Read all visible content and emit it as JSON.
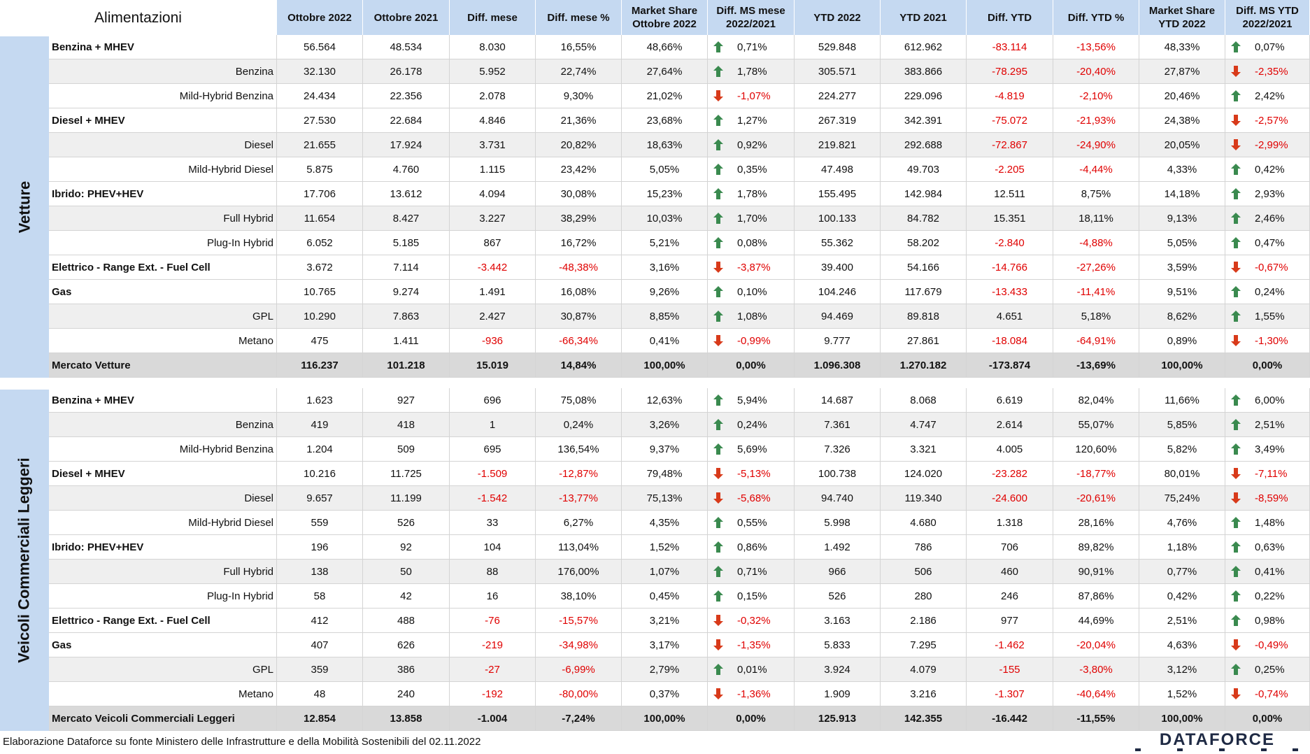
{
  "columns": [
    "Alimentazioni",
    "Ottobre 2022",
    "Ottobre 2021",
    "Diff. mese",
    "Diff. mese %",
    "Market Share\nOttobre 2022",
    "Diff. MS mese\n2022/2021",
    "YTD 2022",
    "YTD 2021",
    "Diff. YTD",
    "Diff. YTD %",
    "Market Share\nYTD 2022",
    "Diff. MS YTD\n2022/2021"
  ],
  "sections": [
    {
      "label": "Vetture",
      "rows": [
        {
          "type": "cat",
          "name": "Benzina + MHEV",
          "v": [
            "56.564",
            "48.534",
            "8.030",
            "16,55%",
            "48,66%",
            "0,71%",
            "529.848",
            "612.962",
            "-83.114",
            "-13,56%",
            "48,33%",
            "0,07%"
          ],
          "a1": "up",
          "a2": "up"
        },
        {
          "type": "sub",
          "name": "Benzina",
          "v": [
            "32.130",
            "26.178",
            "5.952",
            "22,74%",
            "27,64%",
            "1,78%",
            "305.571",
            "383.866",
            "-78.295",
            "-20,40%",
            "27,87%",
            "-2,35%"
          ],
          "a1": "up",
          "a2": "down"
        },
        {
          "type": "sub",
          "name": "Mild-Hybrid Benzina",
          "v": [
            "24.434",
            "22.356",
            "2.078",
            "9,30%",
            "21,02%",
            "-1,07%",
            "224.277",
            "229.096",
            "-4.819",
            "-2,10%",
            "20,46%",
            "2,42%"
          ],
          "a1": "down",
          "a2": "up"
        },
        {
          "type": "cat",
          "name": "Diesel + MHEV",
          "v": [
            "27.530",
            "22.684",
            "4.846",
            "21,36%",
            "23,68%",
            "1,27%",
            "267.319",
            "342.391",
            "-75.072",
            "-21,93%",
            "24,38%",
            "-2,57%"
          ],
          "a1": "up",
          "a2": "down"
        },
        {
          "type": "sub",
          "name": "Diesel",
          "v": [
            "21.655",
            "17.924",
            "3.731",
            "20,82%",
            "18,63%",
            "0,92%",
            "219.821",
            "292.688",
            "-72.867",
            "-24,90%",
            "20,05%",
            "-2,99%"
          ],
          "a1": "up",
          "a2": "down"
        },
        {
          "type": "sub",
          "name": "Mild-Hybrid Diesel",
          "v": [
            "5.875",
            "4.760",
            "1.115",
            "23,42%",
            "5,05%",
            "0,35%",
            "47.498",
            "49.703",
            "-2.205",
            "-4,44%",
            "4,33%",
            "0,42%"
          ],
          "a1": "up",
          "a2": "up"
        },
        {
          "type": "cat",
          "name": "Ibrido: PHEV+HEV",
          "v": [
            "17.706",
            "13.612",
            "4.094",
            "30,08%",
            "15,23%",
            "1,78%",
            "155.495",
            "142.984",
            "12.511",
            "8,75%",
            "14,18%",
            "2,93%"
          ],
          "a1": "up",
          "a2": "up"
        },
        {
          "type": "sub",
          "name": "Full Hybrid",
          "v": [
            "11.654",
            "8.427",
            "3.227",
            "38,29%",
            "10,03%",
            "1,70%",
            "100.133",
            "84.782",
            "15.351",
            "18,11%",
            "9,13%",
            "2,46%"
          ],
          "a1": "up",
          "a2": "up"
        },
        {
          "type": "sub",
          "name": "Plug-In Hybrid",
          "v": [
            "6.052",
            "5.185",
            "867",
            "16,72%",
            "5,21%",
            "0,08%",
            "55.362",
            "58.202",
            "-2.840",
            "-4,88%",
            "5,05%",
            "0,47%"
          ],
          "a1": "up",
          "a2": "up"
        },
        {
          "type": "cat",
          "name": "Elettrico - Range Ext. - Fuel Cell",
          "v": [
            "3.672",
            "7.114",
            "-3.442",
            "-48,38%",
            "3,16%",
            "-3,87%",
            "39.400",
            "54.166",
            "-14.766",
            "-27,26%",
            "3,59%",
            "-0,67%"
          ],
          "a1": "down",
          "a2": "down"
        },
        {
          "type": "cat",
          "name": "Gas",
          "v": [
            "10.765",
            "9.274",
            "1.491",
            "16,08%",
            "9,26%",
            "0,10%",
            "104.246",
            "117.679",
            "-13.433",
            "-11,41%",
            "9,51%",
            "0,24%"
          ],
          "a1": "up",
          "a2": "up"
        },
        {
          "type": "sub",
          "name": "GPL",
          "v": [
            "10.290",
            "7.863",
            "2.427",
            "30,87%",
            "8,85%",
            "1,08%",
            "94.469",
            "89.818",
            "4.651",
            "5,18%",
            "8,62%",
            "1,55%"
          ],
          "a1": "up",
          "a2": "up"
        },
        {
          "type": "sub",
          "name": "Metano",
          "v": [
            "475",
            "1.411",
            "-936",
            "-66,34%",
            "0,41%",
            "-0,99%",
            "9.777",
            "27.861",
            "-18.084",
            "-64,91%",
            "0,89%",
            "-1,30%"
          ],
          "a1": "down",
          "a2": "down"
        },
        {
          "type": "tot",
          "name": "Mercato Vetture",
          "v": [
            "116.237",
            "101.218",
            "15.019",
            "14,84%",
            "100,00%",
            "0,00%",
            "1.096.308",
            "1.270.182",
            "-173.874",
            "-13,69%",
            "100,00%",
            "0,00%"
          ],
          "a1": "",
          "a2": ""
        }
      ]
    },
    {
      "label": "Veicoli Commerciali Leggeri",
      "rows": [
        {
          "type": "cat",
          "name": "Benzina + MHEV",
          "v": [
            "1.623",
            "927",
            "696",
            "75,08%",
            "12,63%",
            "5,94%",
            "14.687",
            "8.068",
            "6.619",
            "82,04%",
            "11,66%",
            "6,00%"
          ],
          "a1": "up",
          "a2": "up"
        },
        {
          "type": "sub",
          "name": "Benzina",
          "v": [
            "419",
            "418",
            "1",
            "0,24%",
            "3,26%",
            "0,24%",
            "7.361",
            "4.747",
            "2.614",
            "55,07%",
            "5,85%",
            "2,51%"
          ],
          "a1": "up",
          "a2": "up"
        },
        {
          "type": "sub",
          "name": "Mild-Hybrid Benzina",
          "v": [
            "1.204",
            "509",
            "695",
            "136,54%",
            "9,37%",
            "5,69%",
            "7.326",
            "3.321",
            "4.005",
            "120,60%",
            "5,82%",
            "3,49%"
          ],
          "a1": "up",
          "a2": "up"
        },
        {
          "type": "cat",
          "name": "Diesel + MHEV",
          "v": [
            "10.216",
            "11.725",
            "-1.509",
            "-12,87%",
            "79,48%",
            "-5,13%",
            "100.738",
            "124.020",
            "-23.282",
            "-18,77%",
            "80,01%",
            "-7,11%"
          ],
          "a1": "down",
          "a2": "down"
        },
        {
          "type": "sub",
          "name": "Diesel",
          "v": [
            "9.657",
            "11.199",
            "-1.542",
            "-13,77%",
            "75,13%",
            "-5,68%",
            "94.740",
            "119.340",
            "-24.600",
            "-20,61%",
            "75,24%",
            "-8,59%"
          ],
          "a1": "down",
          "a2": "down"
        },
        {
          "type": "sub",
          "name": "Mild-Hybrid Diesel",
          "v": [
            "559",
            "526",
            "33",
            "6,27%",
            "4,35%",
            "0,55%",
            "5.998",
            "4.680",
            "1.318",
            "28,16%",
            "4,76%",
            "1,48%"
          ],
          "a1": "up",
          "a2": "up"
        },
        {
          "type": "cat",
          "name": "Ibrido: PHEV+HEV",
          "v": [
            "196",
            "92",
            "104",
            "113,04%",
            "1,52%",
            "0,86%",
            "1.492",
            "786",
            "706",
            "89,82%",
            "1,18%",
            "0,63%"
          ],
          "a1": "up",
          "a2": "up"
        },
        {
          "type": "sub",
          "name": "Full Hybrid",
          "v": [
            "138",
            "50",
            "88",
            "176,00%",
            "1,07%",
            "0,71%",
            "966",
            "506",
            "460",
            "90,91%",
            "0,77%",
            "0,41%"
          ],
          "a1": "up",
          "a2": "up"
        },
        {
          "type": "sub",
          "name": "Plug-In Hybrid",
          "v": [
            "58",
            "42",
            "16",
            "38,10%",
            "0,45%",
            "0,15%",
            "526",
            "280",
            "246",
            "87,86%",
            "0,42%",
            "0,22%"
          ],
          "a1": "up",
          "a2": "up"
        },
        {
          "type": "cat",
          "name": "Elettrico - Range Ext. - Fuel Cell",
          "v": [
            "412",
            "488",
            "-76",
            "-15,57%",
            "3,21%",
            "-0,32%",
            "3.163",
            "2.186",
            "977",
            "44,69%",
            "2,51%",
            "0,98%"
          ],
          "a1": "down",
          "a2": "up"
        },
        {
          "type": "cat",
          "name": "Gas",
          "v": [
            "407",
            "626",
            "-219",
            "-34,98%",
            "3,17%",
            "-1,35%",
            "5.833",
            "7.295",
            "-1.462",
            "-20,04%",
            "4,63%",
            "-0,49%"
          ],
          "a1": "down",
          "a2": "down"
        },
        {
          "type": "sub",
          "name": "GPL",
          "v": [
            "359",
            "386",
            "-27",
            "-6,99%",
            "2,79%",
            "0,01%",
            "3.924",
            "4.079",
            "-155",
            "-3,80%",
            "3,12%",
            "0,25%"
          ],
          "a1": "up",
          "a2": "up"
        },
        {
          "type": "sub",
          "name": "Metano",
          "v": [
            "48",
            "240",
            "-192",
            "-80,00%",
            "0,37%",
            "-1,36%",
            "1.909",
            "3.216",
            "-1.307",
            "-40,64%",
            "1,52%",
            "-0,74%"
          ],
          "a1": "down",
          "a2": "down"
        },
        {
          "type": "tot",
          "name": "Mercato Veicoli Commerciali Leggeri",
          "v": [
            "12.854",
            "13.858",
            "-1.004",
            "-7,24%",
            "100,00%",
            "0,00%",
            "125.913",
            "142.355",
            "-16.442",
            "-11,55%",
            "100,00%",
            "0,00%"
          ],
          "a1": "",
          "a2": ""
        }
      ]
    }
  ],
  "footer": {
    "note": "Elaborazione Dataforce su fonte Ministero delle Infrastrutture e della Mobilità Sostenibili del 02.11.2022",
    "logo": "DATAFORCE"
  },
  "colors": {
    "header_blue": "#c5d9f1",
    "up_arrow": "#3a8a4f",
    "down_arrow": "#d83a1a",
    "negative": "#e00000"
  }
}
